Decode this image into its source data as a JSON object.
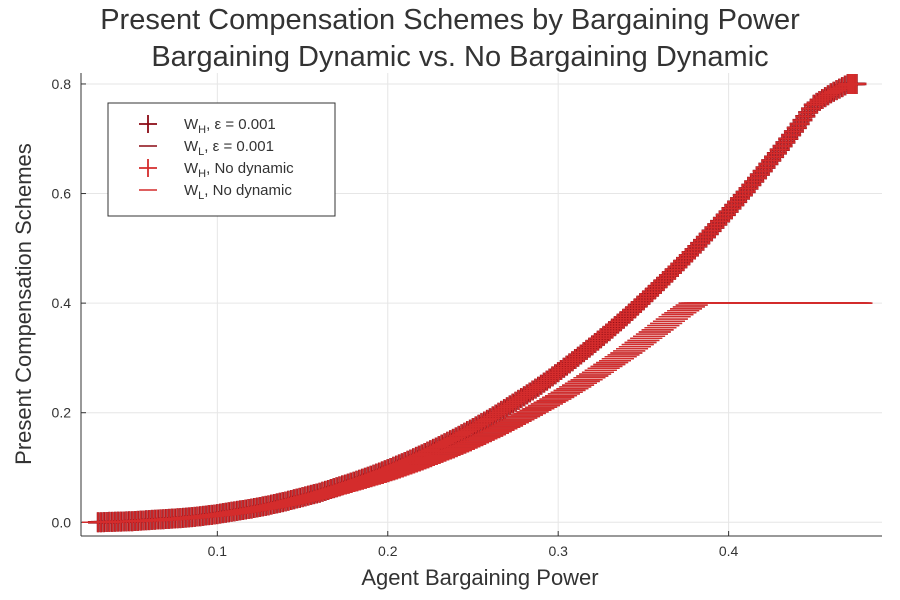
{
  "chart_data": {
    "type": "scatter",
    "title": "Present Compensation Schemes by Bargaining Power",
    "subtitle": "Bargaining Dynamic vs. No Bargaining Dynamic",
    "xlabel": "Agent Bargaining Power",
    "ylabel": "Present Compensation Schemes",
    "xlim": [
      0.02,
      0.49
    ],
    "ylim": [
      -0.025,
      0.82
    ],
    "x_ticks": [
      "0.1",
      "0.2",
      "0.3",
      "0.4"
    ],
    "y_ticks": [
      "0.0",
      "0.2",
      "0.4",
      "0.6",
      "0.8"
    ],
    "grid": true,
    "legend_position": "top-left",
    "x": [
      0.03,
      0.04,
      0.05,
      0.06,
      0.07,
      0.08,
      0.09,
      0.1,
      0.11,
      0.12,
      0.13,
      0.14,
      0.15,
      0.16,
      0.17,
      0.18,
      0.19,
      0.2,
      0.21,
      0.22,
      0.23,
      0.24,
      0.25,
      0.26,
      0.27,
      0.28,
      0.29,
      0.3,
      0.31,
      0.32,
      0.33,
      0.34,
      0.35,
      0.36,
      0.37,
      0.38,
      0.39,
      0.4,
      0.41,
      0.42,
      0.43,
      0.44,
      0.45,
      0.46,
      0.47,
      0.475
    ],
    "series": [
      {
        "name_main": "W",
        "name_sub": "H",
        "name_rest": ", ε = 0.001",
        "marker": "cross",
        "color": "#8B0A14",
        "values": [
          0.0,
          0.001,
          0.002,
          0.004,
          0.006,
          0.008,
          0.011,
          0.015,
          0.02,
          0.025,
          0.031,
          0.038,
          0.046,
          0.054,
          0.064,
          0.074,
          0.085,
          0.097,
          0.11,
          0.124,
          0.139,
          0.155,
          0.172,
          0.19,
          0.21,
          0.23,
          0.251,
          0.274,
          0.298,
          0.323,
          0.349,
          0.376,
          0.405,
          0.435,
          0.466,
          0.498,
          0.532,
          0.567,
          0.603,
          0.641,
          0.68,
          0.72,
          0.762,
          0.783,
          0.8,
          0.8
        ]
      },
      {
        "name_main": "W",
        "name_sub": "L",
        "name_rest": ", ε = 0.001",
        "marker": "hline",
        "color": "#8B0A14",
        "values": [
          0.0,
          0.001,
          0.002,
          0.003,
          0.005,
          0.007,
          0.01,
          0.013,
          0.017,
          0.022,
          0.027,
          0.033,
          0.04,
          0.047,
          0.055,
          0.064,
          0.073,
          0.083,
          0.094,
          0.106,
          0.118,
          0.131,
          0.145,
          0.16,
          0.176,
          0.193,
          0.21,
          0.228,
          0.247,
          0.267,
          0.288,
          0.309,
          0.332,
          0.355,
          0.379,
          0.4,
          0.4,
          0.4,
          0.4,
          0.4,
          0.4,
          0.4,
          0.4,
          0.4,
          0.4,
          0.4
        ]
      },
      {
        "name_main": "W",
        "name_sub": "H",
        "name_rest": ", No dynamic",
        "marker": "cross",
        "color": "#D42C2C",
        "values": [
          0.0,
          0.001,
          0.002,
          0.004,
          0.006,
          0.008,
          0.011,
          0.015,
          0.02,
          0.025,
          0.031,
          0.038,
          0.046,
          0.054,
          0.064,
          0.074,
          0.085,
          0.097,
          0.11,
          0.124,
          0.139,
          0.155,
          0.172,
          0.19,
          0.21,
          0.23,
          0.251,
          0.274,
          0.298,
          0.323,
          0.349,
          0.376,
          0.405,
          0.435,
          0.466,
          0.498,
          0.532,
          0.567,
          0.603,
          0.641,
          0.68,
          0.72,
          0.762,
          0.783,
          0.8,
          0.8
        ]
      },
      {
        "name_main": "W",
        "name_sub": "L",
        "name_rest": ", No dynamic",
        "marker": "hline",
        "color": "#D42C2C",
        "values": [
          0.0,
          0.001,
          0.002,
          0.003,
          0.005,
          0.007,
          0.01,
          0.013,
          0.017,
          0.022,
          0.027,
          0.033,
          0.04,
          0.047,
          0.055,
          0.064,
          0.073,
          0.083,
          0.094,
          0.106,
          0.118,
          0.131,
          0.145,
          0.16,
          0.176,
          0.193,
          0.21,
          0.228,
          0.247,
          0.267,
          0.288,
          0.309,
          0.332,
          0.355,
          0.379,
          0.4,
          0.4,
          0.4,
          0.4,
          0.4,
          0.4,
          0.4,
          0.4,
          0.4,
          0.4,
          0.4
        ]
      }
    ]
  }
}
